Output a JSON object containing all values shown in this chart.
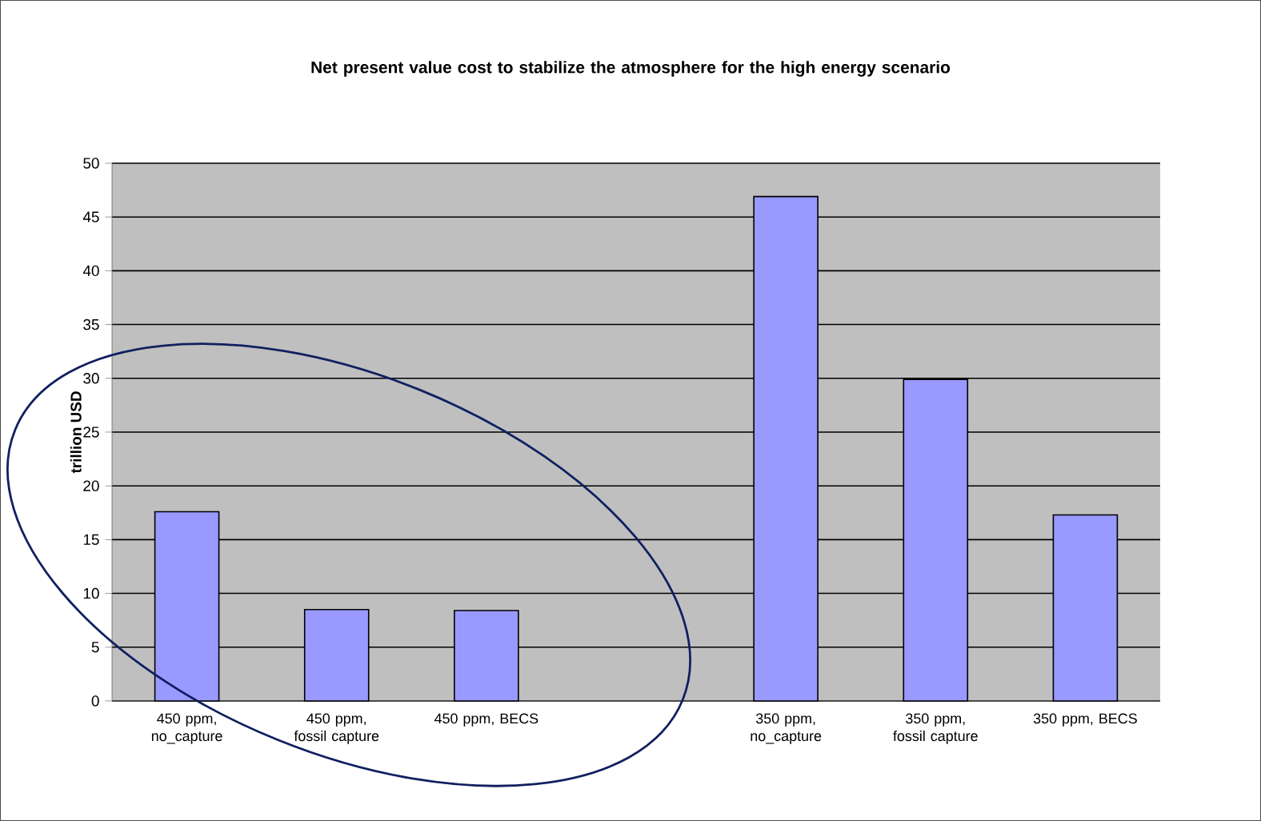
{
  "chart_data": {
    "type": "bar",
    "title": "Net present value cost to stabilize the atmosphere for the high energy scenario",
    "ylabel": "trillion USD",
    "categories": [
      "450 ppm, no_capture",
      "450 ppm, fossil capture",
      "450 ppm, BECS",
      null,
      "350 ppm, no_capture",
      "350 ppm, fossil capture",
      "350 ppm, BECS"
    ],
    "values": [
      17.6,
      8.5,
      8.4,
      null,
      46.9,
      29.9,
      17.3
    ],
    "color": "#9999ff",
    "ylim": [
      0,
      50
    ],
    "yticks": [
      0,
      5,
      10,
      15,
      20,
      25,
      30,
      35,
      40,
      45,
      50
    ],
    "grid": "y"
  }
}
